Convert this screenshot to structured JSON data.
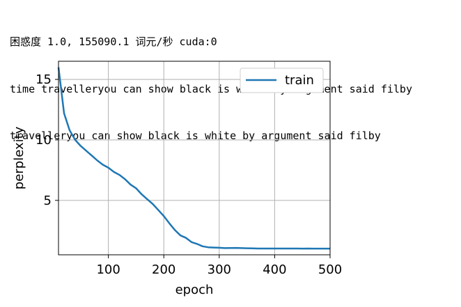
{
  "output": {
    "line1": "困惑度 1.0, 155090.1 词元/秒 cuda:0",
    "line2": "time travelleryou can show black is white by argument said filby",
    "line3": "travelleryou can show black is white by argument said filby"
  },
  "chart_data": {
    "type": "line",
    "title": "",
    "xlabel": "epoch",
    "ylabel": "perplexity",
    "xlim": [
      10,
      500
    ],
    "ylim": [
      0.5,
      16.5
    ],
    "xticks": [
      100,
      200,
      300,
      400,
      500
    ],
    "yticks": [
      5,
      10,
      15
    ],
    "grid": true,
    "legend_position": "top-right",
    "series": [
      {
        "name": "train",
        "color": "#1f77b4",
        "x": [
          10,
          20,
          30,
          40,
          50,
          60,
          70,
          80,
          90,
          100,
          110,
          120,
          130,
          140,
          150,
          160,
          170,
          180,
          190,
          200,
          210,
          220,
          230,
          240,
          250,
          260,
          270,
          280,
          290,
          300,
          310,
          320,
          330,
          340,
          350,
          360,
          370,
          380,
          390,
          400,
          410,
          420,
          430,
          440,
          450,
          460,
          470,
          480,
          490,
          500
        ],
        "values": [
          16.0,
          12.2,
          10.8,
          10.0,
          9.5,
          9.1,
          8.7,
          8.3,
          7.95,
          7.7,
          7.35,
          7.1,
          6.75,
          6.3,
          6.0,
          5.5,
          5.1,
          4.7,
          4.2,
          3.7,
          3.1,
          2.55,
          2.1,
          1.9,
          1.55,
          1.4,
          1.2,
          1.12,
          1.1,
          1.08,
          1.05,
          1.06,
          1.07,
          1.05,
          1.04,
          1.03,
          1.02,
          1.02,
          1.02,
          1.02,
          1.02,
          1.02,
          1.02,
          1.02,
          1.01,
          1.02,
          1.01,
          1.01,
          1.01,
          1.01
        ]
      }
    ]
  }
}
